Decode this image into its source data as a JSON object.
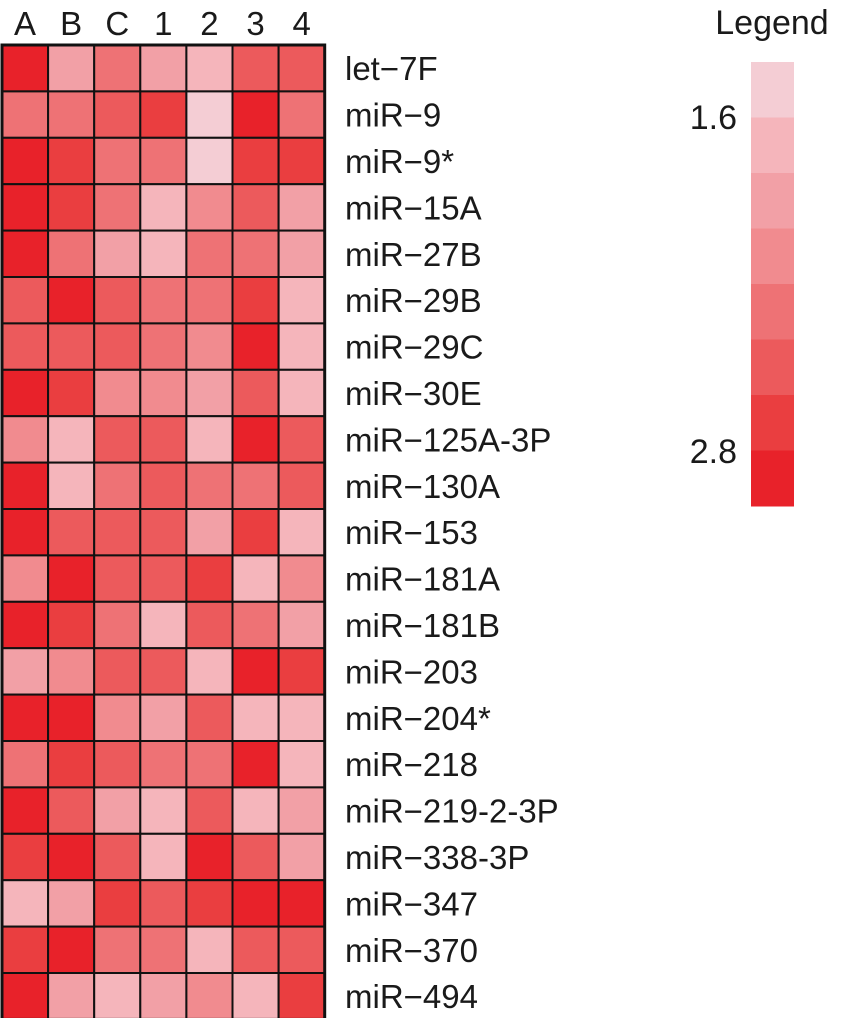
{
  "chart_data": {
    "type": "heatmap",
    "columns": [
      "A",
      "B",
      "C",
      "1",
      "2",
      "3",
      "4"
    ],
    "rows": [
      "let−7F",
      "miR−9",
      "miR−9*",
      "miR−15A",
      "miR−27B",
      "miR−29B",
      "miR−29C",
      "miR−30E",
      "miR−125A-3P",
      "miR−130A",
      "miR−153",
      "miR−181A",
      "miR−181B",
      "miR−203",
      "miR−204*",
      "miR−218",
      "miR−219-2-3P",
      "miR−338-3P",
      "miR−347",
      "miR−370",
      "miR−494"
    ],
    "values": [
      [
        2.8,
        1.9,
        2.2,
        2.0,
        1.7,
        2.5,
        2.4
      ],
      [
        2.2,
        2.2,
        2.5,
        2.6,
        1.6,
        2.8,
        2.3
      ],
      [
        2.8,
        2.7,
        2.2,
        2.2,
        1.6,
        2.7,
        2.6
      ],
      [
        2.8,
        2.7,
        2.2,
        1.7,
        2.1,
        2.5,
        2.0
      ],
      [
        2.8,
        2.3,
        2.0,
        1.7,
        2.2,
        2.3,
        2.0
      ],
      [
        2.5,
        2.8,
        2.5,
        2.3,
        2.2,
        2.7,
        1.7
      ],
      [
        2.5,
        2.5,
        2.5,
        2.3,
        2.1,
        2.8,
        1.7
      ],
      [
        2.8,
        2.7,
        2.1,
        2.1,
        1.9,
        2.4,
        1.7
      ],
      [
        2.1,
        1.8,
        2.5,
        2.5,
        1.7,
        2.8,
        2.5
      ],
      [
        2.8,
        1.7,
        2.3,
        2.5,
        2.3,
        2.2,
        2.5
      ],
      [
        2.8,
        2.4,
        2.4,
        2.5,
        1.9,
        2.6,
        1.7
      ],
      [
        2.1,
        2.8,
        2.4,
        2.5,
        2.7,
        1.7,
        2.1
      ],
      [
        2.8,
        2.6,
        2.2,
        1.7,
        2.5,
        2.2,
        2.0
      ],
      [
        2.0,
        2.1,
        2.5,
        2.5,
        1.7,
        2.8,
        2.6
      ],
      [
        2.8,
        2.8,
        2.1,
        2.0,
        2.4,
        1.8,
        1.7
      ],
      [
        2.2,
        2.6,
        2.5,
        2.3,
        2.3,
        2.8,
        1.7
      ],
      [
        2.8,
        2.4,
        1.9,
        1.7,
        2.4,
        1.8,
        1.9
      ],
      [
        2.6,
        2.8,
        2.4,
        1.7,
        2.8,
        2.4,
        2.0
      ],
      [
        1.7,
        1.9,
        2.7,
        2.5,
        2.6,
        2.8,
        2.8
      ],
      [
        2.7,
        2.8,
        2.2,
        2.3,
        1.7,
        2.5,
        2.4
      ],
      [
        2.8,
        1.9,
        1.8,
        1.9,
        2.1,
        1.7,
        2.6
      ]
    ],
    "legend": {
      "title": "Legend",
      "ticks": [
        {
          "label": "1.6",
          "value": 1.6
        },
        {
          "label": "2.8",
          "value": 2.8
        }
      ],
      "min": 1.6,
      "max": 2.8,
      "colors": [
        "#f4cdd4",
        "#f5b5bb",
        "#f2a0a6",
        "#f18b8f",
        "#ee7275",
        "#ec5a5c",
        "#ea3e40",
        "#e8222a"
      ]
    }
  }
}
